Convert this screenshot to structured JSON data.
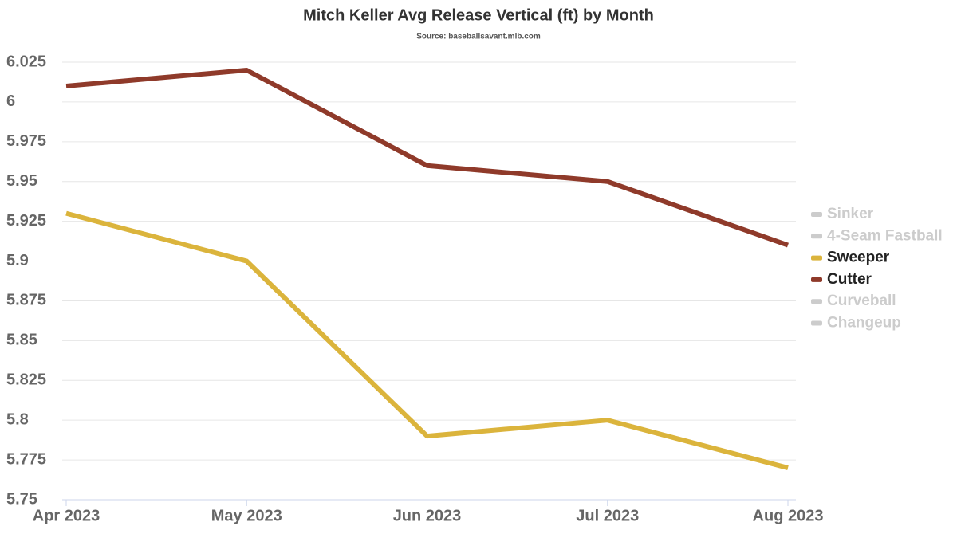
{
  "chart_data": {
    "type": "line",
    "title": "Mitch Keller Avg Release Vertical (ft) by Month",
    "subtitle": "Source: baseballsavant.mlb.com",
    "categories": [
      "Apr 2023",
      "May 2023",
      "Jun 2023",
      "Jul 2023",
      "Aug 2023"
    ],
    "series": [
      {
        "name": "Sinker",
        "color": "#cccccc",
        "hidden": true,
        "values": [
          null,
          null,
          null,
          null,
          null
        ]
      },
      {
        "name": "4-Seam Fastball",
        "color": "#cccccc",
        "hidden": true,
        "values": [
          null,
          null,
          null,
          null,
          null
        ]
      },
      {
        "name": "Sweeper",
        "color": "#dbb43c",
        "hidden": false,
        "values": [
          5.93,
          5.9,
          5.79,
          5.8,
          5.77
        ]
      },
      {
        "name": "Cutter",
        "color": "#8f3a2a",
        "hidden": false,
        "values": [
          6.01,
          6.02,
          5.96,
          5.95,
          5.91
        ]
      },
      {
        "name": "Curveball",
        "color": "#cccccc",
        "hidden": true,
        "values": [
          null,
          null,
          null,
          null,
          null
        ]
      },
      {
        "name": "Changeup",
        "color": "#cccccc",
        "hidden": true,
        "values": [
          null,
          null,
          null,
          null,
          null
        ]
      }
    ],
    "ylim": [
      5.75,
      6.025
    ],
    "yticks": [
      5.75,
      5.775,
      5.8,
      5.825,
      5.85,
      5.875,
      5.9,
      5.925,
      5.95,
      5.975,
      6,
      6.025
    ],
    "grid": true,
    "legend": "right"
  }
}
